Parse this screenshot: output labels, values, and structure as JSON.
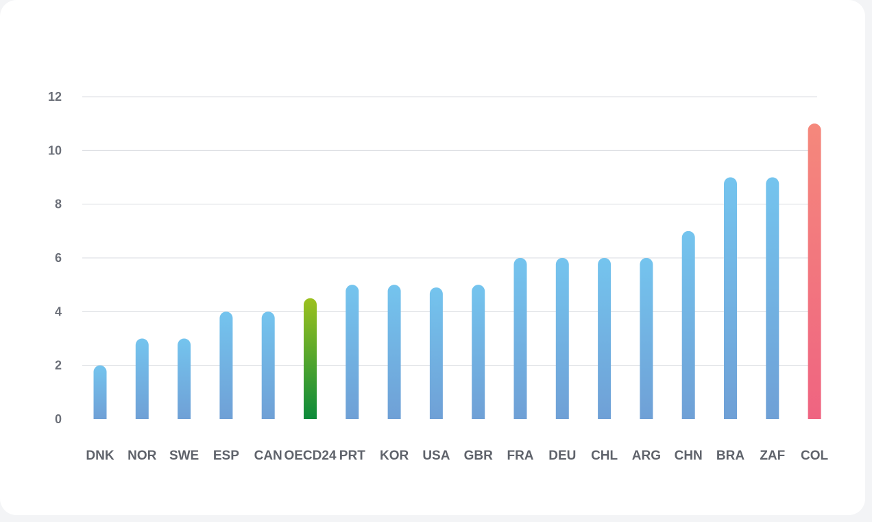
{
  "chart_data": {
    "type": "bar",
    "categories": [
      "DNK",
      "NOR",
      "SWE",
      "ESP",
      "CAN",
      "OECD24",
      "PRT",
      "KOR",
      "USA",
      "GBR",
      "FRA",
      "DEU",
      "CHL",
      "ARG",
      "CHN",
      "BRA",
      "ZAF",
      "COL"
    ],
    "values": [
      2,
      3,
      3,
      4,
      4,
      4.5,
      5,
      5,
      4.9,
      5,
      6,
      6,
      6,
      6,
      7,
      9,
      9,
      11
    ],
    "highlight": {
      "OECD24": "green",
      "COL": "red"
    },
    "ylim": [
      0,
      12
    ],
    "yticks": [
      0,
      2,
      4,
      6,
      8,
      10,
      12
    ],
    "grid": true,
    "colors": {
      "default_top": "#74c4ee",
      "default_bottom": "#6fa0d6",
      "green_top": "#9cc11f",
      "green_bottom": "#0c8a3b",
      "red_top": "#f5887c",
      "red_bottom": "#ef6481",
      "grid": "#d9dbe0"
    }
  }
}
